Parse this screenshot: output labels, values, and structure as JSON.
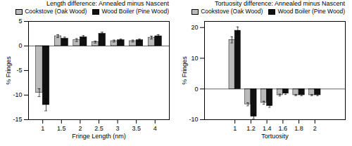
{
  "chart_data": [
    {
      "type": "bar",
      "annotation": "Length difference: Annealed minus Nascent",
      "xlabel": "Fringe Length (nm)",
      "ylabel": "% Fringes",
      "x": [
        1,
        1.5,
        2,
        2.5,
        3,
        3.5,
        4
      ],
      "series": [
        {
          "name": "Cookstove (Oak Wood)",
          "color": "#bbbbbb",
          "values": [
            -9.5,
            2.0,
            1.2,
            0.8,
            1.0,
            1.0,
            1.7
          ],
          "errors": [
            0.8,
            0.3,
            0.3,
            0.2,
            0.2,
            0.2,
            0.3
          ]
        },
        {
          "name": "Wood Boiler (Pine Wood)",
          "color": "#111111",
          "values": [
            -12.0,
            1.5,
            1.8,
            2.5,
            1.2,
            1.2,
            2.0
          ],
          "errors": [
            1.2,
            0.3,
            0.3,
            0.3,
            0.2,
            0.2,
            0.3
          ]
        }
      ],
      "xlim": [
        0.62,
        4.38
      ],
      "xticks": [
        1,
        1.5,
        2,
        2.5,
        3,
        3.5,
        4
      ],
      "ylim": [
        -15,
        5
      ],
      "yticks": [
        -15,
        -10,
        -5,
        0,
        5
      ],
      "legend": "right"
    },
    {
      "type": "bar",
      "title": "Tortuosity difference: Annealed minus Nascent",
      "xlabel": "Tortuosity",
      "ylabel": "% Fringes",
      "x": [
        1,
        1.2,
        1.4,
        1.6,
        1.8,
        2
      ],
      "series": [
        {
          "name": "Cookstove (Oak Wood)",
          "color": "#bbbbbb",
          "values": [
            16.0,
            -5.0,
            -4.5,
            -2.0,
            -2.0,
            -2.0
          ],
          "errors": [
            1.0,
            0.5,
            0.5,
            0.3,
            0.2,
            0.2
          ]
        },
        {
          "name": "Wood Boiler (Pine Wood)",
          "color": "#111111",
          "values": [
            19.0,
            -9.0,
            -5.5,
            -1.5,
            -2.0,
            -2.0
          ],
          "errors": [
            1.2,
            0.7,
            0.5,
            0.3,
            0.2,
            0.2
          ]
        }
      ],
      "xlim": [
        0.62,
        2.38
      ],
      "xticks": [
        1,
        1.2,
        1.4,
        1.6,
        1.8,
        2
      ],
      "ylim": [
        -10,
        22
      ],
      "yticks": [
        -10,
        0,
        10,
        20
      ],
      "legend": "right"
    }
  ]
}
